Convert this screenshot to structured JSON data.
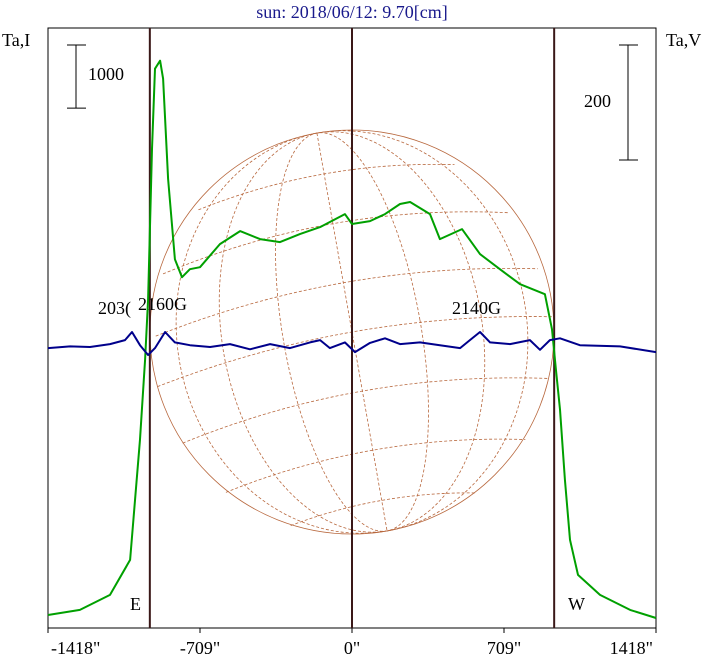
{
  "chart_data": {
    "type": "line",
    "title": "sun: 2018/06/12: 9.70[cm]",
    "ylabel": "Ta,I",
    "y2label": "Ta,V",
    "xlim": [
      -1418,
      1418
    ],
    "xticks": [
      {
        "value": -1418,
        "label": "-1418\""
      },
      {
        "value": -709,
        "label": "-709\""
      },
      {
        "value": 0,
        "label": "0\""
      },
      {
        "value": 709,
        "label": "709\""
      },
      {
        "value": 1418,
        "label": "1418\""
      }
    ],
    "ylim": [
      0,
      9500
    ],
    "y2lim": [
      -487,
      557
    ],
    "i_scale": 1000,
    "v_scale": 200,
    "vlines": [
      -943,
      0,
      943
    ],
    "series": [
      {
        "name": "I",
        "color": "#00a000",
        "x": [
          -1418,
          -1269,
          -1129,
          -1035,
          -989,
          -965,
          -951,
          -933,
          -919,
          -895,
          -881,
          -858,
          -826,
          -793,
          -756,
          -709,
          -616,
          -522,
          -429,
          -336,
          -243,
          -149,
          -33,
          0,
          84,
          154,
          224,
          271,
          364,
          410,
          513,
          597,
          690,
          784,
          900,
          933,
          951,
          970,
          993,
          1017,
          1054,
          1157,
          1297,
          1418
        ],
        "values": [
          206,
          286,
          524,
          1079,
          2984,
          4253,
          5205,
          7586,
          8855,
          8982,
          8697,
          7110,
          5840,
          5555,
          5681,
          5713,
          6078,
          6285,
          6158,
          6110,
          6237,
          6348,
          6554,
          6396,
          6443,
          6554,
          6713,
          6745,
          6554,
          6158,
          6316,
          5920,
          5681,
          5443,
          5285,
          4729,
          4094,
          3460,
          2349,
          1397,
          841,
          524,
          286,
          159
        ]
      },
      {
        "name": "V",
        "color": "#00008b",
        "axis": "y2",
        "x": [
          -1418,
          -1315,
          -1222,
          -1129,
          -1059,
          -1026,
          -989,
          -951,
          -919,
          -872,
          -826,
          -756,
          -662,
          -569,
          -476,
          -382,
          -289,
          -196,
          -149,
          -103,
          -33,
          14,
          84,
          154,
          224,
          317,
          410,
          504,
          550,
          597,
          644,
          737,
          830,
          877,
          923,
          970,
          1063,
          1250,
          1418
        ],
        "values": [
          0,
          3,
          2,
          7,
          14,
          28,
          5,
          -12,
          0,
          28,
          10,
          5,
          2,
          7,
          -2,
          7,
          0,
          10,
          14,
          0,
          10,
          -7,
          9,
          17,
          7,
          10,
          5,
          0,
          14,
          28,
          10,
          7,
          14,
          -3,
          14,
          17,
          5,
          3,
          -7
        ]
      }
    ],
    "annotations": [
      "203(",
      "2160G",
      "2140G",
      "E",
      "W"
    ]
  }
}
